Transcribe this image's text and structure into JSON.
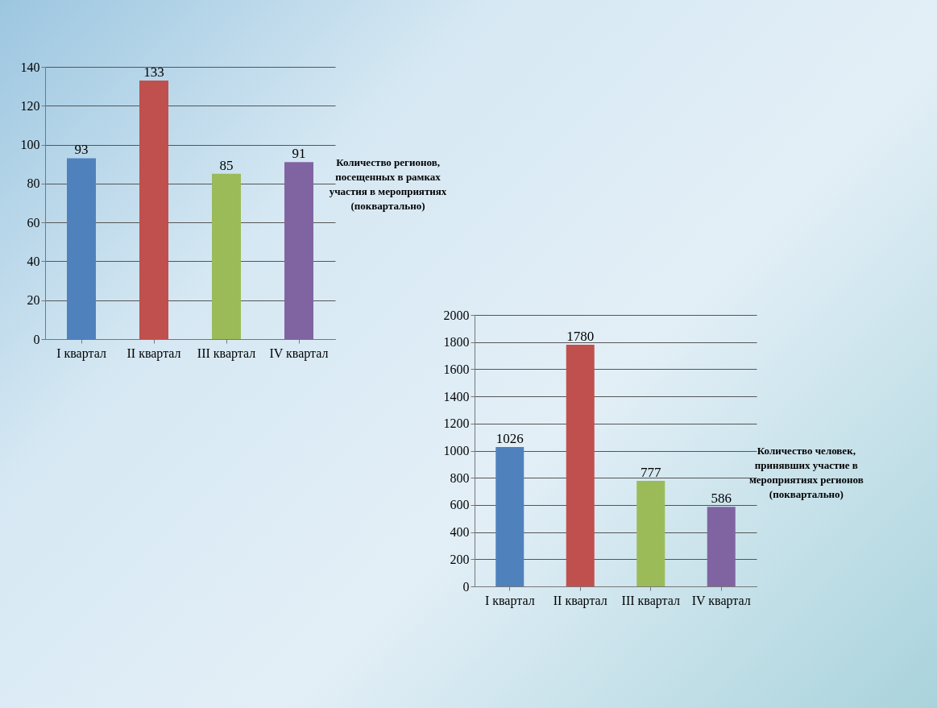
{
  "chart_data": [
    {
      "type": "bar",
      "title": "Количество регионов, посещенных в рамках участия в мероприятиях (поквартально)",
      "categories": [
        "I квартал",
        "II квартал",
        "III квартал",
        "IV квартал"
      ],
      "values": [
        93,
        133,
        85,
        91
      ],
      "colors": [
        "#4f81bd",
        "#c0504d",
        "#9bbb59",
        "#8064a2"
      ],
      "ylim": [
        0,
        140
      ],
      "yticks": [
        0,
        20,
        40,
        60,
        80,
        100,
        120,
        140
      ],
      "grid": "y",
      "data_labels": true
    },
    {
      "type": "bar",
      "title": "Количество человек, принявших участие в мероприятиях регионов (поквартально)",
      "categories": [
        "I квартал",
        "II квартал",
        "III квартал",
        "IV квартал"
      ],
      "values": [
        1026,
        1780,
        777,
        586
      ],
      "colors": [
        "#4f81bd",
        "#c0504d",
        "#9bbb59",
        "#8064a2"
      ],
      "ylim": [
        0,
        2000
      ],
      "yticks": [
        0,
        200,
        400,
        600,
        800,
        1000,
        1200,
        1400,
        1600,
        1800,
        2000
      ],
      "grid": "y",
      "data_labels": true
    }
  ]
}
